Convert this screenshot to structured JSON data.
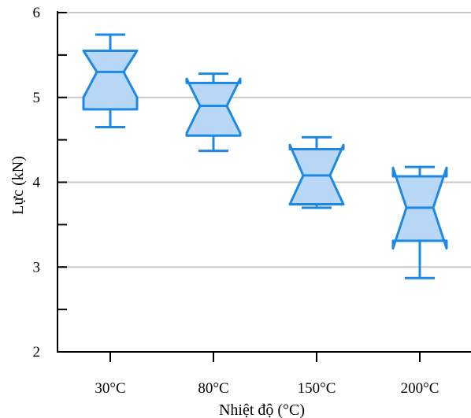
{
  "chart_data": {
    "type": "box",
    "notched": true,
    "xlabel": "Nhiệt độ (°C)",
    "ylabel": "Lực (kN)",
    "ylim": [
      2,
      6
    ],
    "y_ticks": [
      2,
      3,
      4,
      5,
      6
    ],
    "y_minor_ticks": [
      2.5,
      3.5,
      4.5,
      5.5
    ],
    "grid": "horizontal",
    "categories": [
      "30°C",
      "80°C",
      "150°C",
      "200°C"
    ],
    "boxes": [
      {
        "category": "30°C",
        "whisker_low": 4.65,
        "q1": 4.86,
        "notch_low": 5.0,
        "median": 5.3,
        "notch_high": 5.55,
        "q3": 5.55,
        "whisker_high": 5.74
      },
      {
        "category": "80°C",
        "whisker_low": 4.37,
        "q1": 4.55,
        "notch_low": 4.58,
        "median": 4.9,
        "notch_high": 5.22,
        "q3": 5.17,
        "whisker_high": 5.28
      },
      {
        "category": "150°C",
        "whisker_low": 3.7,
        "q1": 3.74,
        "notch_low": 3.74,
        "median": 4.08,
        "notch_high": 4.44,
        "q3": 4.39,
        "whisker_high": 4.53
      },
      {
        "category": "200°C",
        "whisker_low": 2.87,
        "q1": 3.31,
        "notch_low": 3.22,
        "median": 3.7,
        "notch_high": 4.17,
        "q3": 4.07,
        "whisker_high": 4.18
      }
    ],
    "colors": {
      "box_fill": "#b9d8f7",
      "box_stroke": "#1e88e5",
      "grid": "#c8c8c8",
      "axis": "#000000"
    }
  }
}
